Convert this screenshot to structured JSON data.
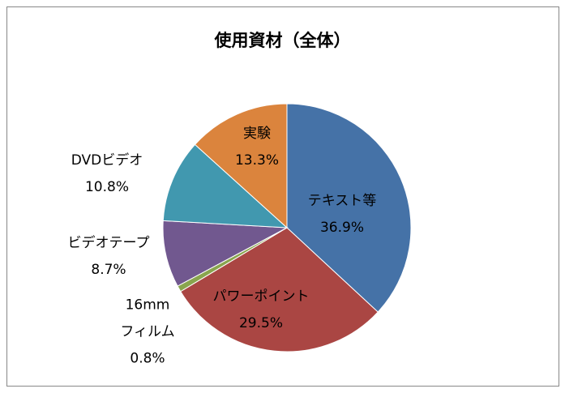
{
  "chart_data": {
    "type": "pie",
    "title": "使用資材（全体）",
    "categories": [
      "テキスト等",
      "パワーポイント",
      "16mm\nフィルム",
      "ビデオテープ",
      "DVDビデオ",
      "実験"
    ],
    "values": [
      36.9,
      29.5,
      0.8,
      8.7,
      10.8,
      13.3
    ],
    "value_labels": [
      "36.9%",
      "29.5%",
      "0.8%",
      "8.7%",
      "10.8%",
      "13.3%"
    ],
    "colors": [
      "#4572a7",
      "#aa4643",
      "#89a54e",
      "#71588f",
      "#4198af",
      "#db843d"
    ]
  }
}
